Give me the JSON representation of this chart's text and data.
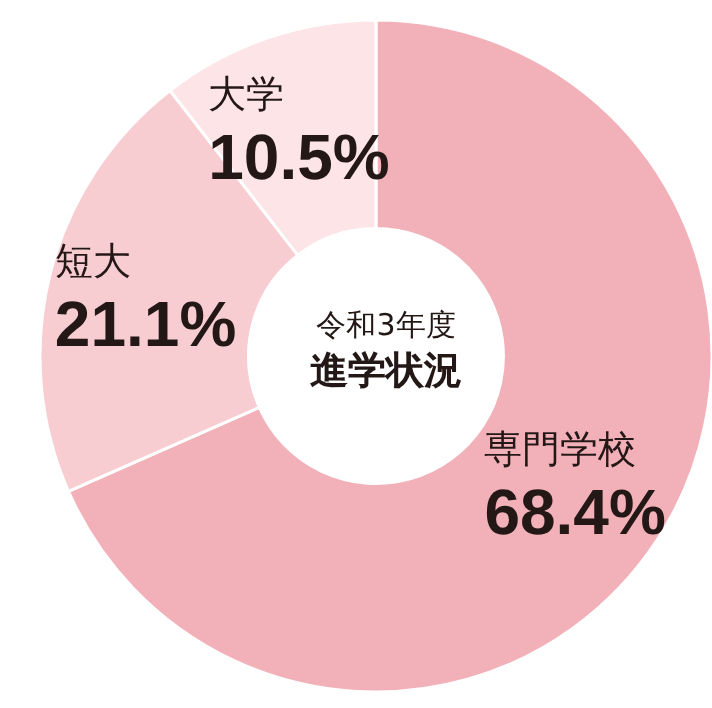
{
  "chart_data": {
    "type": "donut",
    "title": "令和3年度",
    "subtitle": "進学状況",
    "categories": [
      "専門学校",
      "短大",
      "大学"
    ],
    "values": [
      68.4,
      21.1,
      10.5
    ],
    "value_labels": [
      "68.4%",
      "21.1%",
      "10.5%"
    ],
    "colors": [
      "#f2b1b9",
      "#f8cdd2",
      "#fce4e7"
    ],
    "legend": false
  }
}
